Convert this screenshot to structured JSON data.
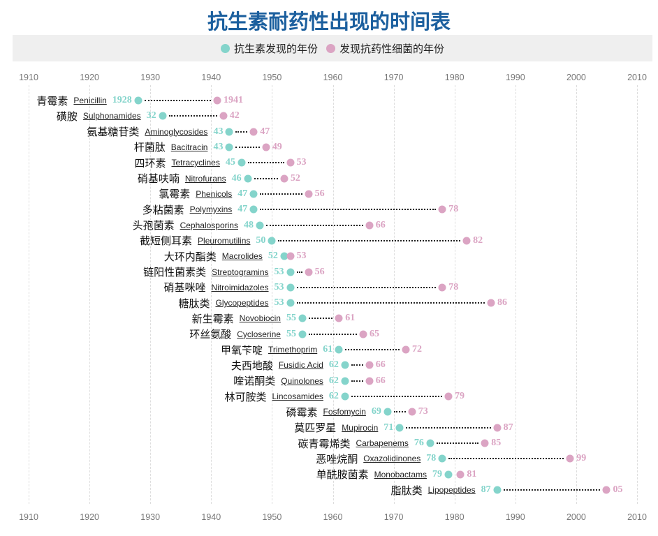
{
  "colors": {
    "discovery": "#84d4cb",
    "resistance": "#dba4c3",
    "title": "#1b5f9e"
  },
  "chart_data": {
    "type": "dumbbell",
    "title": "抗生素耐药性出现的时间表",
    "legend": [
      {
        "name": "抗生素发现的年份",
        "color": "#84d4cb"
      },
      {
        "name": "发现抗药性细菌的年份",
        "color": "#dba4c3"
      }
    ],
    "legend_placement": "top",
    "xlim": [
      1910,
      2010
    ],
    "x_ticks": [
      "1910",
      "1920",
      "1930",
      "1940",
      "1950",
      "1960",
      "1970",
      "1980",
      "1990",
      "2000",
      "2010"
    ],
    "grid": true,
    "rows": [
      {
        "cn": "青霉素",
        "en": "Penicillin",
        "discovered": 1928,
        "resistance": 1941,
        "d_label": "1928",
        "r_label": "1941"
      },
      {
        "cn": "磺胺",
        "en": "Sulphonamides",
        "discovered": 1932,
        "resistance": 1942,
        "d_label": "32",
        "r_label": "42"
      },
      {
        "cn": "氨基糖苷类",
        "en": "Aminoglycosides",
        "discovered": 1943,
        "resistance": 1947,
        "d_label": "43",
        "r_label": "47"
      },
      {
        "cn": "杆菌肽",
        "en": "Bacitracin",
        "discovered": 1943,
        "resistance": 1949,
        "d_label": "43",
        "r_label": "49"
      },
      {
        "cn": "四环素",
        "en": "Tetracyclines",
        "discovered": 1945,
        "resistance": 1953,
        "d_label": "45",
        "r_label": "53"
      },
      {
        "cn": "硝基呋喃",
        "en": "Nitrofurans",
        "discovered": 1946,
        "resistance": 1952,
        "d_label": "46",
        "r_label": "52"
      },
      {
        "cn": "氯霉素",
        "en": "Phenicols",
        "discovered": 1947,
        "resistance": 1956,
        "d_label": "47",
        "r_label": "56"
      },
      {
        "cn": "多粘菌素",
        "en": "Polymyxins",
        "discovered": 1947,
        "resistance": 1978,
        "d_label": "47",
        "r_label": "78"
      },
      {
        "cn": "头孢菌素",
        "en": "Cephalosporins",
        "discovered": 1948,
        "resistance": 1966,
        "d_label": "48",
        "r_label": "66"
      },
      {
        "cn": "截短侧耳素",
        "en": "Pleuromutilins",
        "discovered": 1950,
        "resistance": 1982,
        "d_label": "50",
        "r_label": "82"
      },
      {
        "cn": "大环内酯类",
        "en": "Macrolides",
        "discovered": 1952,
        "resistance": 1953,
        "d_label": "52",
        "r_label": "53"
      },
      {
        "cn": "链阳性菌素类",
        "en": "Streptogramins",
        "discovered": 1953,
        "resistance": 1956,
        "d_label": "53",
        "r_label": "56"
      },
      {
        "cn": "硝基咪唑",
        "en": "Nitroimidazoles",
        "discovered": 1953,
        "resistance": 1978,
        "d_label": "53",
        "r_label": "78"
      },
      {
        "cn": "糖肽类",
        "en": "Glycopeptides",
        "discovered": 1953,
        "resistance": 1986,
        "d_label": "53",
        "r_label": "86"
      },
      {
        "cn": "新生霉素",
        "en": "Novobiocin",
        "discovered": 1955,
        "resistance": 1961,
        "d_label": "55",
        "r_label": "61"
      },
      {
        "cn": "环丝氨酸",
        "en": "Cycloserine",
        "discovered": 1955,
        "resistance": 1965,
        "d_label": "55",
        "r_label": "65"
      },
      {
        "cn": "甲氧苄啶",
        "en": "Trimethoprim",
        "discovered": 1961,
        "resistance": 1972,
        "d_label": "61",
        "r_label": "72"
      },
      {
        "cn": "夫西地酸",
        "en": "Fusidic Acid",
        "discovered": 1962,
        "resistance": 1966,
        "d_label": "62",
        "r_label": "66"
      },
      {
        "cn": "喹诺酮类",
        "en": "Quinolones",
        "discovered": 1962,
        "resistance": 1966,
        "d_label": "62",
        "r_label": "66"
      },
      {
        "cn": "林可胺类",
        "en": "Lincosamides",
        "discovered": 1962,
        "resistance": 1979,
        "d_label": "62",
        "r_label": "79"
      },
      {
        "cn": "磷霉素",
        "en": "Fosfomycin",
        "discovered": 1969,
        "resistance": 1973,
        "d_label": "69",
        "r_label": "73"
      },
      {
        "cn": "莫匹罗星",
        "en": "Mupirocin",
        "discovered": 1971,
        "resistance": 1987,
        "d_label": "71",
        "r_label": "87"
      },
      {
        "cn": "碳青霉烯类",
        "en": "Carbapenems",
        "discovered": 1976,
        "resistance": 1985,
        "d_label": "76",
        "r_label": "85"
      },
      {
        "cn": "恶唑烷酮",
        "en": "Oxazolidinones",
        "discovered": 1978,
        "resistance": 1999,
        "d_label": "78",
        "r_label": "99"
      },
      {
        "cn": "单酰胺菌素",
        "en": "Monobactams",
        "discovered": 1979,
        "resistance": 1981,
        "d_label": "79",
        "r_label": "81"
      },
      {
        "cn": "脂肽类",
        "en": "Lipopeptides",
        "discovered": 1987,
        "resistance": 2005,
        "d_label": "87",
        "r_label": "05"
      }
    ]
  }
}
